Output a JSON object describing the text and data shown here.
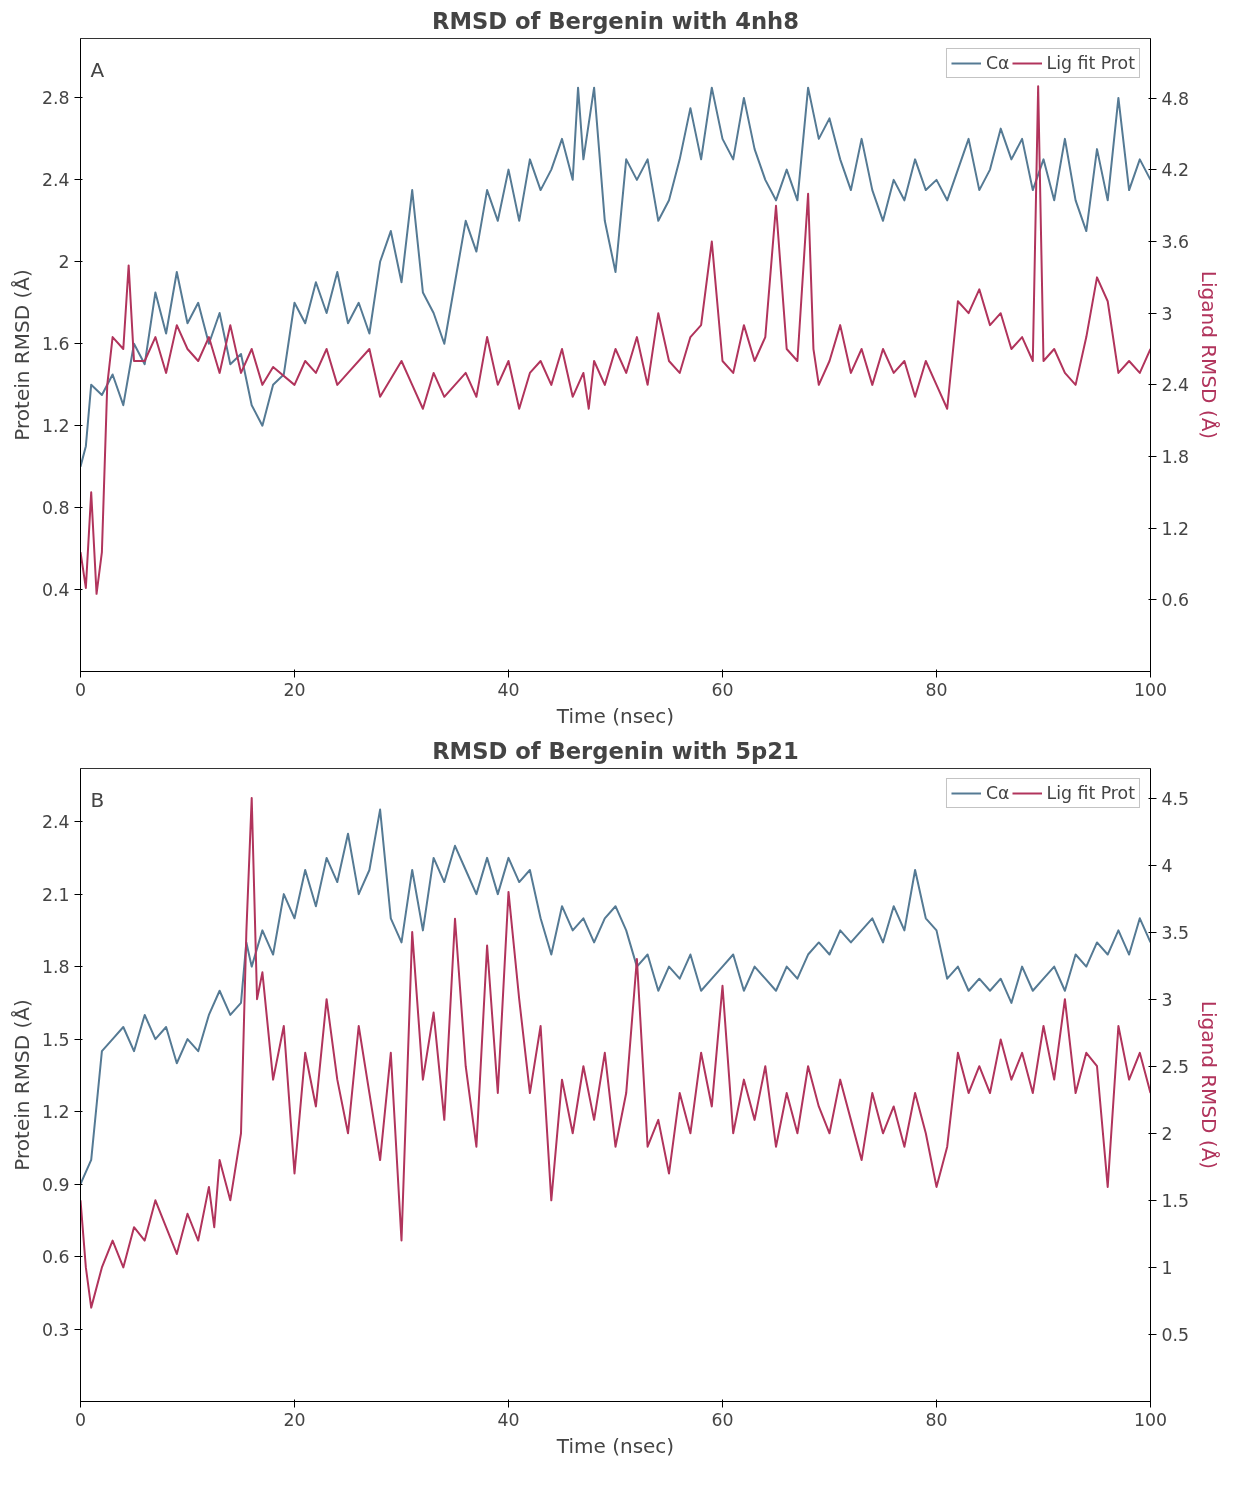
{
  "chart_data": [
    {
      "type": "line",
      "title": "RMSD of Bergenin with 4nh8",
      "xlabel": "Time (nsec)",
      "ylabel": "Protein RMSD (Å)",
      "y2label": "Ligand RMSD (Å)",
      "annotations": [
        "A"
      ],
      "xlim": [
        0,
        100
      ],
      "xticks": [
        0,
        20,
        40,
        60,
        80,
        100
      ],
      "ylim": [
        0,
        3.09
      ],
      "yticks": [
        0.4,
        0.8,
        1.2,
        1.6,
        2.0,
        2.4,
        2.8
      ],
      "y2lim": [
        0,
        5.3
      ],
      "y2ticks": [
        0.6,
        1.2,
        1.8,
        2.4,
        3.0,
        3.6,
        4.2,
        4.8
      ],
      "legend": "top right",
      "grid": false,
      "series": [
        {
          "name": "Cα",
          "color": "#557a94",
          "x": [
            0,
            0.5,
            1,
            2,
            3,
            4,
            5,
            6,
            7,
            8,
            9,
            10,
            11,
            12,
            13,
            14,
            15,
            16,
            17,
            18,
            19,
            20,
            21,
            22,
            23,
            24,
            25,
            26,
            27,
            28,
            29,
            30,
            31,
            32,
            33,
            34,
            35,
            36,
            37,
            38,
            39,
            40,
            41,
            42,
            43,
            44,
            45,
            46,
            46.5,
            47,
            48,
            49,
            50,
            51,
            52,
            53,
            54,
            55,
            56,
            57,
            58,
            59,
            60,
            61,
            62,
            63,
            64,
            65,
            66,
            67,
            68,
            69,
            70,
            71,
            72,
            73,
            74,
            75,
            76,
            77,
            78,
            79,
            80,
            81,
            82,
            83,
            84,
            85,
            86,
            87,
            88,
            89,
            90,
            91,
            92,
            93,
            94,
            95,
            96,
            97,
            98,
            99,
            100
          ],
          "values": [
            1.0,
            1.1,
            1.4,
            1.35,
            1.45,
            1.3,
            1.6,
            1.5,
            1.85,
            1.65,
            1.95,
            1.7,
            1.8,
            1.6,
            1.75,
            1.5,
            1.55,
            1.3,
            1.2,
            1.4,
            1.45,
            1.8,
            1.7,
            1.9,
            1.75,
            1.95,
            1.7,
            1.8,
            1.65,
            2.0,
            2.15,
            1.9,
            2.35,
            1.85,
            1.75,
            1.6,
            1.9,
            2.2,
            2.05,
            2.35,
            2.2,
            2.45,
            2.2,
            2.5,
            2.35,
            2.45,
            2.6,
            2.4,
            2.85,
            2.5,
            2.85,
            2.2,
            1.95,
            2.5,
            2.4,
            2.5,
            2.2,
            2.3,
            2.5,
            2.75,
            2.5,
            2.85,
            2.6,
            2.5,
            2.8,
            2.55,
            2.4,
            2.3,
            2.45,
            2.3,
            2.85,
            2.6,
            2.7,
            2.5,
            2.35,
            2.6,
            2.35,
            2.2,
            2.4,
            2.3,
            2.5,
            2.35,
            2.4,
            2.3,
            2.45,
            2.6,
            2.35,
            2.45,
            2.65,
            2.5,
            2.6,
            2.35,
            2.5,
            2.3,
            2.6,
            2.3,
            2.15,
            2.55,
            2.3,
            2.8,
            2.35,
            2.5,
            2.4
          ]
        },
        {
          "name": "Lig fit Prot",
          "color": "#b1345c",
          "axis": "y2",
          "x": [
            0,
            0.5,
            1,
            1.5,
            2,
            2.5,
            3,
            4,
            4.5,
            5,
            6,
            7,
            8,
            9,
            10,
            11,
            12,
            13,
            14,
            15,
            16,
            17,
            18,
            20,
            21,
            22,
            23,
            24,
            25,
            27,
            28,
            30,
            31,
            32,
            33,
            34,
            36,
            37,
            38,
            39,
            40,
            41,
            42,
            43,
            44,
            45,
            46,
            47,
            47.5,
            48,
            49,
            50,
            51,
            52,
            53,
            54,
            55,
            56,
            57,
            58,
            59,
            60,
            61,
            62,
            63,
            64,
            65,
            66,
            67,
            68,
            68.5,
            69,
            70,
            71,
            72,
            73,
            74,
            75,
            76,
            77,
            78,
            79,
            80,
            81,
            82,
            83,
            84,
            85,
            86,
            87,
            88,
            89,
            89.5,
            90,
            91,
            92,
            93,
            94,
            95,
            96,
            97,
            98,
            99,
            100
          ],
          "values": [
            1.0,
            0.7,
            1.5,
            0.65,
            1.0,
            2.4,
            2.8,
            2.7,
            3.4,
            2.6,
            2.6,
            2.8,
            2.5,
            2.9,
            2.7,
            2.6,
            2.8,
            2.5,
            2.9,
            2.5,
            2.7,
            2.4,
            2.55,
            2.4,
            2.6,
            2.5,
            2.7,
            2.4,
            2.5,
            2.7,
            2.3,
            2.6,
            2.4,
            2.2,
            2.5,
            2.3,
            2.5,
            2.3,
            2.8,
            2.4,
            2.6,
            2.2,
            2.5,
            2.6,
            2.4,
            2.7,
            2.3,
            2.5,
            2.2,
            2.6,
            2.4,
            2.7,
            2.5,
            2.8,
            2.4,
            3.0,
            2.6,
            2.5,
            2.8,
            2.9,
            3.6,
            2.6,
            2.5,
            2.9,
            2.6,
            2.8,
            3.9,
            2.7,
            2.6,
            4.0,
            2.7,
            2.4,
            2.6,
            2.9,
            2.5,
            2.7,
            2.4,
            2.7,
            2.5,
            2.6,
            2.3,
            2.6,
            2.4,
            2.2,
            3.1,
            3.0,
            3.2,
            2.9,
            3.0,
            2.7,
            2.8,
            2.6,
            4.9,
            2.6,
            2.7,
            2.5,
            2.4,
            2.8,
            3.3,
            3.1,
            2.5,
            2.6,
            2.5,
            2.7
          ]
        }
      ]
    },
    {
      "type": "line",
      "title": "RMSD of Bergenin with 5p21",
      "xlabel": "Time (nsec)",
      "ylabel": "Protein RMSD (Å)",
      "y2label": "Ligand RMSD (Å)",
      "annotations": [
        "B"
      ],
      "xlim": [
        0,
        100
      ],
      "xticks": [
        0,
        20,
        40,
        60,
        80,
        100
      ],
      "ylim": [
        0,
        2.62
      ],
      "yticks": [
        0.3,
        0.6,
        0.9,
        1.2,
        1.5,
        1.8,
        2.1,
        2.4
      ],
      "y2lim": [
        0,
        4.72
      ],
      "y2ticks": [
        0.5,
        1.0,
        1.5,
        2.0,
        2.5,
        3.0,
        3.5,
        4.0,
        4.5
      ],
      "legend": "top right",
      "grid": false,
      "series": [
        {
          "name": "Cα",
          "color": "#557a94",
          "x": [
            0,
            1,
            2,
            3,
            4,
            5,
            6,
            7,
            8,
            9,
            10,
            11,
            12,
            13,
            14,
            15,
            15.5,
            16,
            17,
            18,
            19,
            20,
            21,
            22,
            23,
            24,
            25,
            26,
            27,
            28,
            29,
            30,
            31,
            32,
            33,
            34,
            35,
            36,
            37,
            38,
            39,
            40,
            41,
            42,
            43,
            44,
            45,
            46,
            47,
            48,
            49,
            50,
            51,
            52,
            53,
            54,
            55,
            56,
            57,
            58,
            59,
            60,
            61,
            62,
            63,
            64,
            65,
            66,
            67,
            68,
            69,
            70,
            71,
            72,
            73,
            74,
            75,
            76,
            77,
            78,
            79,
            80,
            81,
            82,
            83,
            84,
            85,
            86,
            87,
            88,
            89,
            90,
            91,
            92,
            93,
            94,
            95,
            96,
            97,
            98,
            99,
            100
          ],
          "values": [
            0.9,
            1.0,
            1.45,
            1.5,
            1.55,
            1.45,
            1.6,
            1.5,
            1.55,
            1.4,
            1.5,
            1.45,
            1.6,
            1.7,
            1.6,
            1.65,
            1.9,
            1.8,
            1.95,
            1.85,
            2.1,
            2.0,
            2.2,
            2.05,
            2.25,
            2.15,
            2.35,
            2.1,
            2.2,
            2.45,
            2.0,
            1.9,
            2.2,
            1.95,
            2.25,
            2.15,
            2.3,
            2.2,
            2.1,
            2.25,
            2.1,
            2.25,
            2.15,
            2.2,
            2.0,
            1.85,
            2.05,
            1.95,
            2.0,
            1.9,
            2.0,
            2.05,
            1.95,
            1.8,
            1.85,
            1.7,
            1.8,
            1.75,
            1.85,
            1.7,
            1.75,
            1.8,
            1.85,
            1.7,
            1.8,
            1.75,
            1.7,
            1.8,
            1.75,
            1.85,
            1.9,
            1.85,
            1.95,
            1.9,
            1.95,
            2.0,
            1.9,
            2.05,
            1.95,
            2.2,
            2.0,
            1.95,
            1.75,
            1.8,
            1.7,
            1.75,
            1.7,
            1.75,
            1.65,
            1.8,
            1.7,
            1.75,
            1.8,
            1.7,
            1.85,
            1.8,
            1.9,
            1.85,
            1.95,
            1.85,
            2.0,
            1.9
          ]
        },
        {
          "name": "Lig fit Prot",
          "color": "#b1345c",
          "axis": "y2",
          "x": [
            0,
            0.5,
            1,
            2,
            3,
            4,
            5,
            6,
            7,
            8,
            9,
            10,
            11,
            12,
            12.5,
            13,
            14,
            15,
            15.5,
            16,
            16.5,
            17,
            18,
            19,
            20,
            21,
            22,
            23,
            24,
            25,
            26,
            27,
            28,
            29,
            30,
            31,
            32,
            33,
            34,
            35,
            36,
            37,
            38,
            39,
            40,
            41,
            42,
            43,
            44,
            45,
            46,
            47,
            48,
            49,
            50,
            51,
            52,
            53,
            54,
            55,
            56,
            57,
            58,
            59,
            60,
            61,
            62,
            63,
            64,
            65,
            66,
            67,
            68,
            69,
            70,
            71,
            72,
            73,
            74,
            75,
            76,
            77,
            78,
            79,
            80,
            81,
            82,
            83,
            84,
            85,
            86,
            87,
            88,
            89,
            90,
            91,
            92,
            93,
            94,
            95,
            96,
            97,
            98,
            99,
            100
          ],
          "values": [
            1.5,
            1.0,
            0.7,
            1.0,
            1.2,
            1.0,
            1.3,
            1.2,
            1.5,
            1.3,
            1.1,
            1.4,
            1.2,
            1.6,
            1.3,
            1.8,
            1.5,
            2.0,
            3.5,
            4.5,
            3.0,
            3.2,
            2.4,
            2.8,
            1.7,
            2.6,
            2.2,
            3.0,
            2.4,
            2.0,
            2.8,
            2.3,
            1.8,
            2.6,
            1.2,
            3.5,
            2.4,
            2.9,
            2.1,
            3.6,
            2.5,
            1.9,
            3.4,
            2.3,
            3.8,
            3.0,
            2.3,
            2.8,
            1.5,
            2.4,
            2.0,
            2.5,
            2.1,
            2.6,
            1.9,
            2.3,
            3.3,
            1.9,
            2.1,
            1.7,
            2.3,
            2.0,
            2.6,
            2.2,
            3.1,
            2.0,
            2.4,
            2.1,
            2.5,
            1.9,
            2.3,
            2.0,
            2.5,
            2.2,
            2.0,
            2.4,
            2.1,
            1.8,
            2.3,
            2.0,
            2.2,
            1.9,
            2.3,
            2.0,
            1.6,
            1.9,
            2.6,
            2.3,
            2.5,
            2.3,
            2.7,
            2.4,
            2.6,
            2.3,
            2.8,
            2.4,
            3.0,
            2.3,
            2.6,
            2.5,
            1.6,
            2.8,
            2.4,
            2.6,
            2.3
          ]
        }
      ]
    }
  ]
}
